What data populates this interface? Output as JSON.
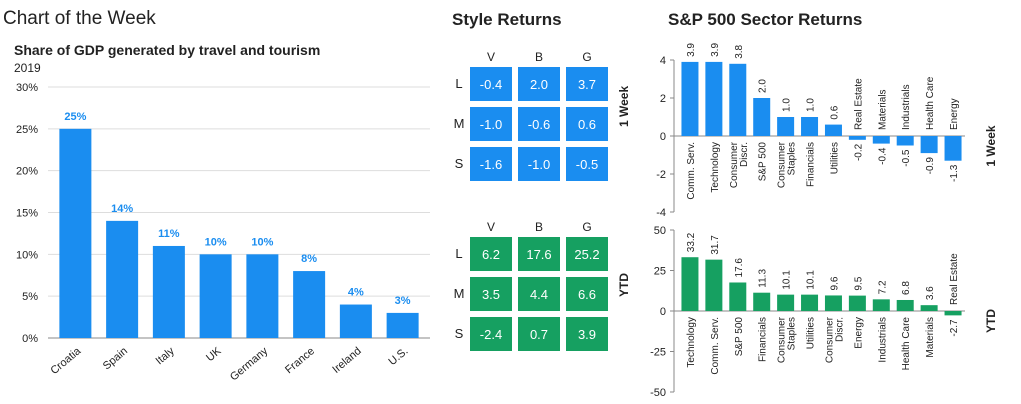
{
  "chart_of_week": {
    "header": "Chart of the Week",
    "chart_data": {
      "type": "bar",
      "title": "Share of GDP generated by travel and tourism",
      "subtitle": "2019",
      "categories": [
        "Croatia",
        "Spain",
        "Italy",
        "UK",
        "Germany",
        "France",
        "Ireland",
        "U.S."
      ],
      "values": [
        25,
        14,
        11,
        10,
        10,
        8,
        4,
        3
      ],
      "value_labels": [
        "25%",
        "14%",
        "11%",
        "10%",
        "10%",
        "8%",
        "4%",
        "3%"
      ],
      "ylim": [
        0,
        30
      ],
      "yticks": [
        "0%",
        "5%",
        "10%",
        "15%",
        "20%",
        "25%",
        "30%"
      ],
      "bar_color": "#1a8df0",
      "label_color": "#1a8df0"
    }
  },
  "style_returns": {
    "header": "Style Returns",
    "columns": [
      "V",
      "B",
      "G"
    ],
    "rows": [
      "L",
      "M",
      "S"
    ],
    "week_label": "1 Week",
    "ytd_label": "YTD",
    "week": [
      [
        "-0.4",
        "2.0",
        "3.7"
      ],
      [
        "-1.0",
        "-0.6",
        "0.6"
      ],
      [
        "-1.6",
        "-1.0",
        "-0.5"
      ]
    ],
    "ytd": [
      [
        "6.2",
        "17.6",
        "25.2"
      ],
      [
        "3.5",
        "4.4",
        "6.6"
      ],
      [
        "-2.4",
        "0.7",
        "3.9"
      ]
    ],
    "colors": {
      "week": "#1a8df0",
      "ytd": "#16a061"
    }
  },
  "sector_returns": {
    "header": "S&P 500 Sector Returns",
    "chart_data": [
      {
        "type": "bar",
        "side_label": "1 Week",
        "categories": [
          "Comm. Serv.",
          "Technology",
          "Consumer Discr.",
          "S&P 500",
          "Consumer Staples",
          "Financials",
          "Utilities",
          "Real Estate",
          "Materials",
          "Industrials",
          "Health Care",
          "Energy"
        ],
        "values": [
          3.9,
          3.9,
          3.8,
          2.0,
          1.0,
          1.0,
          0.6,
          -0.2,
          -0.4,
          -0.5,
          -0.9,
          -1.3
        ],
        "labels": [
          "3.9",
          "3.9",
          "3.8",
          "2.0",
          "1.0",
          "1.0",
          "0.6",
          "-0.2",
          "-0.4",
          "-0.5",
          "-0.9",
          "-1.3"
        ],
        "ylim": [
          -4,
          4
        ],
        "yticks": [
          "-4",
          "-2",
          "0",
          "2",
          "4"
        ],
        "color": "#1a8df0"
      },
      {
        "type": "bar",
        "side_label": "YTD",
        "categories": [
          "Technology",
          "Comm. Serv.",
          "S&P 500",
          "Financials",
          "Consumer Staples",
          "Utilities",
          "Consumer Discr.",
          "Energy",
          "Industrials",
          "Health Care",
          "Materials",
          "Real Estate"
        ],
        "values": [
          33.2,
          31.7,
          17.6,
          11.3,
          10.1,
          10.1,
          9.6,
          9.5,
          7.2,
          6.8,
          3.6,
          -2.7
        ],
        "labels": [
          "33.2",
          "31.7",
          "17.6",
          "11.3",
          "10.1",
          "10.1",
          "9.6",
          "9.5",
          "7.2",
          "6.8",
          "3.6",
          "-2.7"
        ],
        "ylim": [
          -50,
          50
        ],
        "yticks": [
          "-50",
          "-25",
          "0",
          "25",
          "50"
        ],
        "color": "#16a061"
      }
    ]
  }
}
